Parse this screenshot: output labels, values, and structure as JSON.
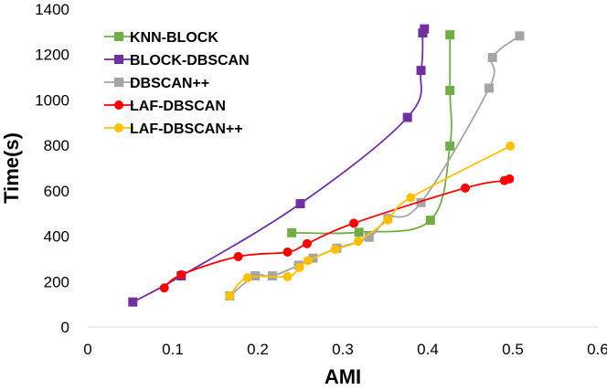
{
  "chart_data": {
    "type": "line",
    "xlabel": "AMI",
    "ylabel": "Time(s)",
    "xlim": [
      0,
      0.6
    ],
    "ylim": [
      0,
      1400
    ],
    "xticks": [
      0,
      0.1,
      0.2,
      0.3,
      0.4,
      0.5,
      0.6
    ],
    "yticks": [
      0,
      200,
      400,
      600,
      800,
      1000,
      1200,
      1400
    ],
    "xtick_labels": [
      "0",
      "0.1",
      "0.2",
      "0.3",
      "0.4",
      "0.5",
      "0.6"
    ],
    "ytick_labels": [
      "0",
      "200",
      "400",
      "600",
      "800",
      "1000",
      "1200",
      "1400"
    ],
    "grid": false,
    "legend_position": "top-left",
    "series": [
      {
        "name": "KNN-BLOCK",
        "color": "#70AD47",
        "marker": "square",
        "points": [
          [
            0.24,
            415
          ],
          [
            0.319,
            417
          ],
          [
            0.403,
            470
          ],
          [
            0.426,
            797
          ],
          [
            0.426,
            1042
          ],
          [
            0.426,
            1287
          ]
        ]
      },
      {
        "name": "BLOCK-DBSCAN",
        "color": "#7030A0",
        "marker": "square",
        "points": [
          [
            0.053,
            110
          ],
          [
            0.11,
            225
          ],
          [
            0.25,
            543
          ],
          [
            0.376,
            923
          ],
          [
            0.392,
            1130
          ],
          [
            0.394,
            1295
          ],
          [
            0.396,
            1313
          ]
        ]
      },
      {
        "name": "DBSCAN++",
        "color": "#A5A5A5",
        "marker": "square",
        "points": [
          [
            0.167,
            137
          ],
          [
            0.197,
            225
          ],
          [
            0.217,
            225
          ],
          [
            0.248,
            272
          ],
          [
            0.265,
            303
          ],
          [
            0.293,
            347
          ],
          [
            0.331,
            395
          ],
          [
            0.353,
            478
          ],
          [
            0.392,
            548
          ],
          [
            0.472,
            1052
          ],
          [
            0.476,
            1187
          ],
          [
            0.508,
            1282
          ]
        ]
      },
      {
        "name": "LAF-DBSCAN",
        "color": "#FF0000",
        "marker": "circle",
        "points": [
          [
            0.09,
            172
          ],
          [
            0.11,
            230
          ],
          [
            0.177,
            310
          ],
          [
            0.235,
            330
          ],
          [
            0.258,
            367
          ],
          [
            0.313,
            457
          ],
          [
            0.444,
            612
          ],
          [
            0.49,
            645
          ],
          [
            0.496,
            652
          ]
        ]
      },
      {
        "name": "LAF-DBSCAN++",
        "color": "#FFC000",
        "marker": "circle",
        "points": [
          [
            0.167,
            137
          ],
          [
            0.188,
            217
          ],
          [
            0.235,
            222
          ],
          [
            0.249,
            262
          ],
          [
            0.259,
            292
          ],
          [
            0.291,
            342
          ],
          [
            0.318,
            377
          ],
          [
            0.353,
            472
          ],
          [
            0.38,
            570
          ],
          [
            0.497,
            797
          ]
        ]
      }
    ]
  }
}
